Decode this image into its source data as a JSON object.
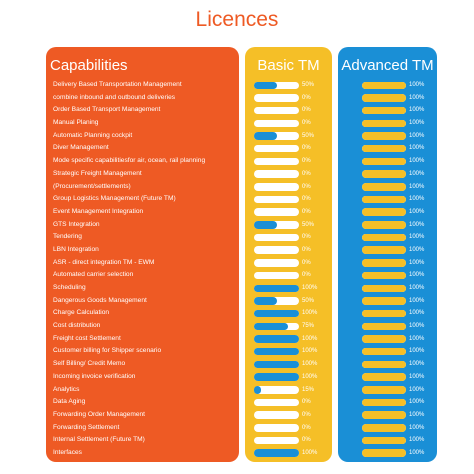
{
  "title": "Licences",
  "columns": {
    "capabilities": "Capabilities",
    "basic": "Basic TM",
    "advanced": "Advanced TM"
  },
  "colors": {
    "capabilities_bg": "#ee5a24",
    "basic_bg": "#f5bf27",
    "advanced_bg": "#1a8fd6"
  },
  "rows": [
    {
      "label": "Delivery Based Transportation Management",
      "basic": 50,
      "advanced": 100
    },
    {
      "label": "combine inbound and outbound deliveries",
      "basic": 0,
      "advanced": 100
    },
    {
      "label": "Order Based Transport Management",
      "basic": 0,
      "advanced": 100
    },
    {
      "label": "Manual Planing",
      "basic": 0,
      "advanced": 100
    },
    {
      "label": "Automatic Planning cockpit",
      "basic": 50,
      "advanced": 100
    },
    {
      "label": "Diver Management",
      "basic": 0,
      "advanced": 100
    },
    {
      "label": "Mode specific capabilitiesfor air, ocean, rail planning",
      "basic": 0,
      "advanced": 100
    },
    {
      "label": "Strategic Freight Management",
      "basic": 0,
      "advanced": 100
    },
    {
      "label": "(Procurement/settlements)",
      "basic": 0,
      "advanced": 100
    },
    {
      "label": "Group Logistics Management (Future TM)",
      "basic": 0,
      "advanced": 100
    },
    {
      "label": "Event Management Integration",
      "basic": 0,
      "advanced": 100
    },
    {
      "label": "GTS Integration",
      "basic": 50,
      "advanced": 100
    },
    {
      "label": "Tendering",
      "basic": 0,
      "advanced": 100
    },
    {
      "label": "LBN Integration",
      "basic": 0,
      "advanced": 100
    },
    {
      "label": "ASR - direct integration TM - EWM",
      "basic": 0,
      "advanced": 100
    },
    {
      "label": "Automated carrier selection",
      "basic": 0,
      "advanced": 100
    },
    {
      "label": "Scheduling",
      "basic": 100,
      "advanced": 100
    },
    {
      "label": "Dangerous Goods Management",
      "basic": 50,
      "advanced": 100
    },
    {
      "label": "Charge Calculation",
      "basic": 100,
      "advanced": 100
    },
    {
      "label": "Cost distribution",
      "basic": 75,
      "advanced": 100
    },
    {
      "label": "Freight cost Settlement",
      "basic": 100,
      "advanced": 100
    },
    {
      "label": "Customer billing for Shipper scenario",
      "basic": 100,
      "advanced": 100
    },
    {
      "label": "Self Billing/ Credit Memo",
      "basic": 100,
      "advanced": 100
    },
    {
      "label": "Incoming invoice verification",
      "basic": 100,
      "advanced": 100
    },
    {
      "label": "Analytics",
      "basic": 15,
      "advanced": 100
    },
    {
      "label": "Data Aging",
      "basic": 0,
      "advanced": 100
    },
    {
      "label": "Forwarding Order Management",
      "basic": 0,
      "advanced": 100
    },
    {
      "label": "Forwarding Settlement",
      "basic": 0,
      "advanced": 100
    },
    {
      "label": "Internal Settlement (Future TM)",
      "basic": 0,
      "advanced": 100
    },
    {
      "label": "Interfaces",
      "basic": 100,
      "advanced": 100
    }
  ]
}
